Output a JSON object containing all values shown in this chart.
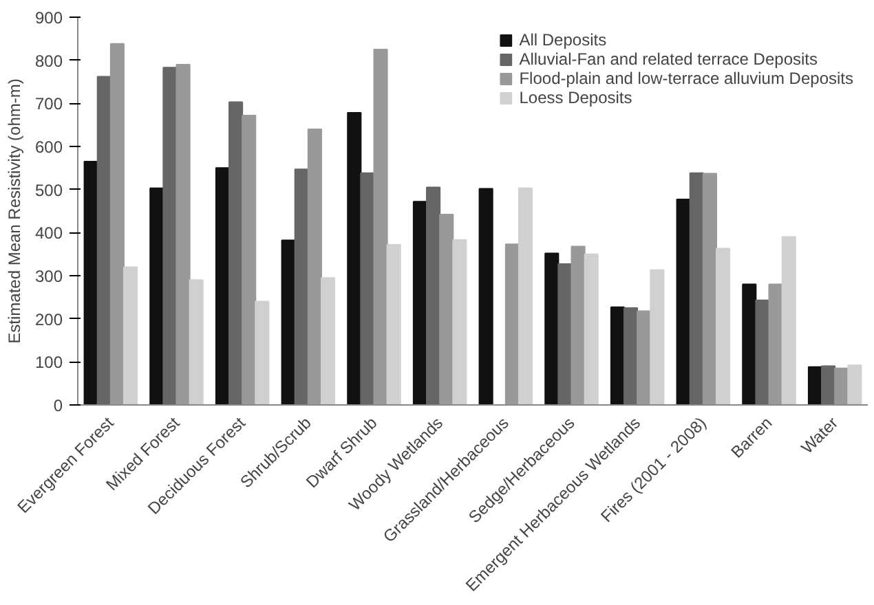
{
  "chart_data": {
    "type": "bar",
    "ylabel": "Estimated Mean Resistivity (ohm-m)",
    "categories": [
      "Evergreen Forest",
      "Mixed Forest",
      "Deciduous Forest",
      "Shrub/Scrub",
      "Dwarf Shrub",
      "Woody Wetlands",
      "Grassland/Herbaceous",
      "Sedge/Herbaceous",
      "Emergent Herbaceous Wetlands",
      "Fires (2001 - 2008)",
      "Barren",
      "Water"
    ],
    "series": [
      {
        "name": "All Deposits",
        "color": "#111111",
        "values": [
          565,
          503,
          550,
          382,
          678,
          472,
          502,
          352,
          227,
          477,
          280,
          88
        ]
      },
      {
        "name": "Alluvial-Fan and related terrace Deposits",
        "color": "#666666",
        "values": [
          762,
          783,
          703,
          547,
          538,
          505,
          null,
          327,
          225,
          538,
          243,
          90
        ]
      },
      {
        "name": "Flood-plain and low-terrace alluvium Deposits",
        "color": "#999999",
        "values": [
          838,
          790,
          672,
          640,
          825,
          442,
          373,
          368,
          218,
          537,
          280,
          85
        ]
      },
      {
        "name": "Loess Deposits",
        "color": "#d0d0d0",
        "values": [
          320,
          290,
          240,
          295,
          372,
          383,
          503,
          350,
          313,
          363,
          390,
          92
        ]
      }
    ],
    "ylim": [
      0,
      900
    ],
    "yticks": [
      0,
      100,
      200,
      300,
      400,
      500,
      600,
      700,
      800,
      900
    ],
    "grid": false,
    "legend": "top right"
  }
}
